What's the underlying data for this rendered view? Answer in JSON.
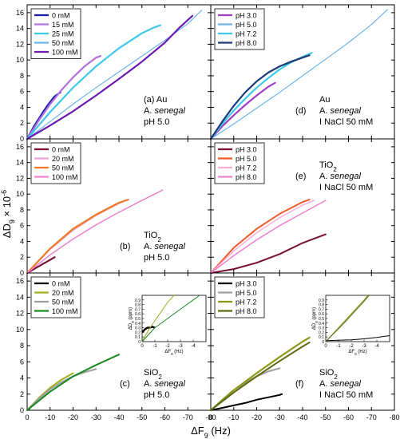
{
  "figure": {
    "xlabel_main": "ΔF",
    "xlabel_sub": "9",
    "xlabel_unit": " (Hz)",
    "ylabel_main": "ΔD",
    "ylabel_sub": "9",
    "ylabel_tail": " × 10",
    "ylabel_sup": "-6"
  },
  "chart_data": [
    {
      "id": "a",
      "type": "line",
      "xlim": [
        0,
        -80
      ],
      "ylim": [
        0,
        17
      ],
      "xticks": [
        0,
        -10,
        -20,
        -30,
        -40,
        -50,
        -60,
        -70,
        -80
      ],
      "yticks": [
        0,
        2,
        4,
        6,
        8,
        10,
        12,
        14,
        16
      ],
      "show_xticklabels": false,
      "show_yticklabels": true,
      "legend_position": "top-left",
      "annotation": [
        [
          "(a)",
          " ",
          "Au"
        ],
        [
          "A. ",
          "senegal",
          ""
        ],
        [
          "pH 5.0",
          "",
          ""
        ]
      ],
      "series": [
        {
          "name": "0 mM",
          "color": "#1a1aa8",
          "width": 2.2,
          "x": [
            0,
            -3,
            -6,
            -9,
            -12,
            -14.5
          ],
          "y": [
            0,
            1.6,
            3,
            4.3,
            5.4,
            5.9
          ]
        },
        {
          "name": "15 mM",
          "color": "#b070e0",
          "width": 2.2,
          "x": [
            0,
            -5,
            -10,
            -15,
            -20,
            -25,
            -30,
            -32
          ],
          "y": [
            0,
            2.3,
            4.4,
            6.2,
            7.8,
            9.2,
            10.3,
            10.5
          ]
        },
        {
          "name": "25 mM",
          "color": "#40c8e8",
          "width": 2.2,
          "x": [
            0,
            -10,
            -20,
            -30,
            -40,
            -50,
            -55,
            -58
          ],
          "y": [
            0,
            3.4,
            6.5,
            9.2,
            11.5,
            13.4,
            14.1,
            14.4
          ]
        },
        {
          "name": "50 mM",
          "color": "#6cb4ec",
          "width": 1.2,
          "x": [
            0,
            -10,
            -20,
            -30,
            -40,
            -50,
            -60,
            -70,
            -76
          ],
          "y": [
            0,
            2.2,
            4.4,
            6.5,
            8.5,
            10.5,
            12.5,
            14.6,
            16.3
          ]
        },
        {
          "name": "100 mM",
          "color": "#6a1ab0",
          "width": 2.2,
          "x": [
            0,
            -10,
            -20,
            -30,
            -40,
            -50,
            -60,
            -66,
            -72
          ],
          "y": [
            0,
            1.7,
            3.5,
            5.5,
            7.6,
            9.8,
            12.2,
            14.0,
            15.6
          ]
        }
      ]
    },
    {
      "id": "d",
      "type": "line",
      "xlim": [
        0,
        -80
      ],
      "ylim": [
        0,
        17
      ],
      "xticks": [
        0,
        -10,
        -20,
        -30,
        -40,
        -50,
        -60,
        -70,
        -80
      ],
      "yticks": [
        0,
        2,
        4,
        6,
        8,
        10,
        12,
        14,
        16
      ],
      "show_xticklabels": false,
      "show_yticklabels": false,
      "legend_position": "top-left",
      "annotation": [
        [
          "Au",
          "",
          ""
        ],
        [
          "A. ",
          "senegal",
          ""
        ],
        [
          "I NaCl 50 mM",
          "",
          ""
        ]
      ],
      "annotation_prefix": "(d)",
      "series": [
        {
          "name": "pH 3.0",
          "color": "#a040c0",
          "width": 2.2,
          "x": [
            0,
            -5,
            -10,
            -15,
            -20,
            -25,
            -28
          ],
          "y": [
            0,
            1.6,
            3.0,
            4.3,
            5.5,
            6.6,
            7.1
          ]
        },
        {
          "name": "pH 5.0",
          "color": "#6cb4ec",
          "width": 1.2,
          "x": [
            0,
            -10,
            -20,
            -30,
            -40,
            -50,
            -60,
            -70,
            -77
          ],
          "y": [
            0,
            1.9,
            3.9,
            5.9,
            8.0,
            10.1,
            12.2,
            14.5,
            16.4
          ]
        },
        {
          "name": "pH 7.2",
          "color": "#40c8e8",
          "width": 2.2,
          "x": [
            0,
            -5,
            -10,
            -15,
            -20,
            -25,
            -30,
            -35,
            -40,
            -44
          ],
          "y": [
            0,
            1.9,
            3.6,
            5.1,
            6.5,
            7.7,
            8.8,
            9.7,
            10.4,
            10.9
          ]
        },
        {
          "name": "pH 8.0",
          "color": "#1c3c78",
          "width": 2.2,
          "x": [
            0,
            -5,
            -10,
            -15,
            -20,
            -25,
            -30,
            -35,
            -40,
            -43
          ],
          "y": [
            0,
            2.2,
            4.2,
            5.9,
            7.3,
            8.4,
            9.2,
            9.8,
            10.3,
            10.6
          ]
        }
      ]
    },
    {
      "id": "b",
      "type": "line",
      "xlim": [
        0,
        -80
      ],
      "ylim": [
        0,
        17
      ],
      "xticks": [
        0,
        -10,
        -20,
        -30,
        -40,
        -50,
        -60,
        -70,
        -80
      ],
      "yticks": [
        0,
        2,
        4,
        6,
        8,
        10,
        12,
        14,
        16
      ],
      "show_xticklabels": false,
      "show_yticklabels": true,
      "legend_position": "top-left",
      "annotation": [
        [
          "TiO",
          "",
          "2"
        ],
        [
          "A. ",
          "senegal",
          ""
        ],
        [
          "pH 5.0",
          "",
          ""
        ]
      ],
      "annotation_prefix": "(b)",
      "series": [
        {
          "name": "0 mM",
          "color": "#7a1030",
          "width": 2.2,
          "x": [
            0,
            -3,
            -6,
            -9,
            -12
          ],
          "y": [
            0,
            0.5,
            1.0,
            1.5,
            2.0
          ]
        },
        {
          "name": "20 mM",
          "color": "#f0a0d0",
          "width": 1.5,
          "x": [
            0,
            -10,
            -20,
            -30,
            -40,
            -44
          ],
          "y": [
            0,
            3.0,
            5.4,
            7.3,
            8.8,
            9.3
          ]
        },
        {
          "name": "50 mM",
          "color": "#ee7a28",
          "width": 2.2,
          "x": [
            0,
            -10,
            -20,
            -30,
            -40,
            -44
          ],
          "y": [
            0,
            3.1,
            5.6,
            7.4,
            8.9,
            9.3
          ]
        },
        {
          "name": "100 mM",
          "color": "#ee80d0",
          "width": 1.5,
          "x": [
            0,
            -10,
            -20,
            -30,
            -40,
            -50,
            -59
          ],
          "y": [
            0,
            2.3,
            4.3,
            6.1,
            7.7,
            9.2,
            10.5
          ]
        }
      ]
    },
    {
      "id": "e",
      "type": "line",
      "xlim": [
        0,
        -80
      ],
      "ylim": [
        0,
        17
      ],
      "xticks": [
        0,
        -10,
        -20,
        -30,
        -40,
        -50,
        -60,
        -70,
        -80
      ],
      "yticks": [
        0,
        2,
        4,
        6,
        8,
        10,
        12,
        14,
        16
      ],
      "show_xticklabels": false,
      "show_yticklabels": false,
      "legend_position": "top-left",
      "annotation": [
        [
          "TiO",
          "",
          "2"
        ],
        [
          "A. ",
          "senegal",
          ""
        ],
        [
          "I NaCl 50 mM",
          "",
          ""
        ]
      ],
      "annotation_prefix": "(e)",
      "series": [
        {
          "name": "pH 3.0",
          "color": "#7a1030",
          "width": 2.0,
          "x": [
            0,
            -10,
            -20,
            -30,
            -40,
            -50
          ],
          "y": [
            0,
            0.5,
            1.3,
            2.4,
            3.8,
            4.9
          ]
        },
        {
          "name": "pH 5.0",
          "color": "#ee5a28",
          "width": 2.0,
          "x": [
            0,
            -10,
            -20,
            -30,
            -40,
            -43
          ],
          "y": [
            0,
            3.2,
            5.6,
            7.5,
            9.0,
            9.3
          ]
        },
        {
          "name": "pH 7.2",
          "color": "#f8b0d8",
          "width": 1.5,
          "x": [
            0,
            -10,
            -20,
            -30,
            -40,
            -45
          ],
          "y": [
            0,
            2.8,
            5.1,
            7.0,
            8.6,
            9.2
          ]
        },
        {
          "name": "pH 8.0",
          "color": "#ee80d0",
          "width": 1.5,
          "x": [
            0,
            -10,
            -20,
            -30,
            -40,
            -50
          ],
          "y": [
            0,
            2.2,
            4.2,
            6.0,
            7.6,
            9.2
          ]
        }
      ]
    },
    {
      "id": "c",
      "type": "line",
      "xlim": [
        0,
        -80
      ],
      "ylim": [
        0,
        17
      ],
      "xticks": [
        0,
        -10,
        -20,
        -30,
        -40,
        -50,
        -60,
        -70,
        -80
      ],
      "yticks": [
        0,
        2,
        4,
        6,
        8,
        10,
        12,
        14,
        16
      ],
      "show_xticklabels": true,
      "show_yticklabels": true,
      "legend_position": "top-left",
      "annotation": [
        [
          "SiO",
          "",
          "2"
        ],
        [
          "A. ",
          "senegal",
          ""
        ],
        [
          "pH 5.0",
          "",
          ""
        ]
      ],
      "annotation_prefix": "(c)",
      "series": [
        {
          "name": "0 mM",
          "color": "#000000",
          "width": 2.2,
          "x": [
            0,
            -0.5,
            -1
          ],
          "y": [
            0,
            0.1,
            0.2
          ]
        },
        {
          "name": "20 mM",
          "color": "#a0ae20",
          "width": 2.0,
          "x": [
            0,
            -5,
            -10,
            -15,
            -20
          ],
          "y": [
            0,
            1.5,
            2.8,
            3.8,
            4.6
          ]
        },
        {
          "name": "50 mM",
          "color": "#a0a0a0",
          "width": 2.0,
          "x": [
            0,
            -5,
            -10,
            -15,
            -20,
            -25,
            -30
          ],
          "y": [
            0,
            1.4,
            2.6,
            3.5,
            4.2,
            4.7,
            5.1
          ]
        },
        {
          "name": "100 mM",
          "color": "#1a8a20",
          "width": 2.0,
          "x": [
            0,
            -10,
            -20,
            -30,
            -40
          ],
          "y": [
            0,
            2.3,
            4.2,
            5.6,
            6.9
          ]
        }
      ],
      "inset": {
        "xlim": [
          0,
          -5
        ],
        "ylim": [
          0,
          1
        ],
        "xticks": [
          0,
          -1,
          -2,
          -3,
          -4
        ],
        "yticks": [
          0,
          0.1,
          0.2,
          0.3,
          0.4,
          0.5,
          0.6,
          0.7,
          0.8,
          0.9
        ],
        "xlabel_main": "ΔF",
        "xlabel_sub": "9",
        "xlabel_unit": " (Hz)",
        "ylabel_main": "ΔD",
        "ylabel_sub": "9",
        "ylabel_unit": " (ppm)",
        "series": [
          {
            "color": "#000000",
            "width": 2.4,
            "x": [
              0,
              -0.2,
              -0.4,
              -0.6,
              -0.8,
              -1.0
            ],
            "y": [
              0.2,
              0.26,
              0.3,
              0.3,
              0.32,
              0.3
            ]
          },
          {
            "color": "#a0ae20",
            "width": 1.0,
            "x": [
              0,
              -0.5,
              -1,
              -1.5,
              -2,
              -2.5
            ],
            "y": [
              0,
              0.25,
              0.45,
              0.65,
              0.85,
              1.0
            ]
          },
          {
            "color": "#1a8a20",
            "width": 1.0,
            "x": [
              0,
              -1,
              -2,
              -3,
              -4,
              -4.5
            ],
            "y": [
              0,
              0.3,
              0.5,
              0.7,
              0.9,
              1.0
            ]
          }
        ]
      }
    },
    {
      "id": "f",
      "type": "line",
      "xlim": [
        0,
        -80
      ],
      "ylim": [
        0,
        17
      ],
      "xticks": [
        0,
        -10,
        -20,
        -30,
        -40,
        -50,
        -60,
        -70,
        -80
      ],
      "yticks": [
        0,
        2,
        4,
        6,
        8,
        10,
        12,
        14,
        16
      ],
      "show_xticklabels": true,
      "show_yticklabels": false,
      "legend_position": "top-left",
      "annotation": [
        [
          "SiO",
          "",
          "2"
        ],
        [
          "A. ",
          "senegal",
          ""
        ],
        [
          "I NaCl 50 mM",
          "",
          ""
        ]
      ],
      "annotation_prefix": "(f)",
      "series": [
        {
          "name": "pH 3.0",
          "color": "#000000",
          "width": 2.0,
          "x": [
            0,
            -5,
            -10,
            -15,
            -20,
            -25,
            -30,
            -31
          ],
          "y": [
            0,
            0.3,
            0.6,
            0.9,
            1.3,
            1.6,
            1.9,
            2.0
          ]
        },
        {
          "name": "pH 5.0",
          "color": "#a0a0a0",
          "width": 2.0,
          "x": [
            0,
            -5,
            -10,
            -15,
            -20,
            -25,
            -30
          ],
          "y": [
            0,
            1.3,
            2.5,
            3.4,
            4.2,
            4.8,
            5.2
          ]
        },
        {
          "name": "pH 7.2",
          "color": "#8c9a18",
          "width": 2.2,
          "x": [
            0,
            -10,
            -20,
            -30,
            -40,
            -43
          ],
          "y": [
            0,
            2.5,
            4.6,
            6.6,
            8.5,
            9.0
          ]
        },
        {
          "name": "pH 8.0",
          "color": "#5e6a12",
          "width": 2.0,
          "x": [
            0,
            -10,
            -20,
            -30,
            -40,
            -43
          ],
          "y": [
            0,
            2.2,
            4.2,
            6.1,
            7.9,
            8.4
          ]
        }
      ],
      "inset": {
        "xlim": [
          0,
          -5
        ],
        "ylim": [
          0,
          1
        ],
        "xticks": [
          0,
          -1,
          -2,
          -3,
          -4
        ],
        "yticks": [
          0,
          0.1,
          0.2,
          0.3,
          0.4,
          0.5,
          0.6,
          0.7,
          0.8,
          0.9
        ],
        "xlabel_main": "ΔF",
        "xlabel_sub": "9",
        "xlabel_unit": " (Hz)",
        "ylabel_main": "ΔD",
        "ylabel_sub": "9",
        "ylabel_unit": " (ppm)",
        "series": [
          {
            "color": "#000000",
            "width": 1.0,
            "x": [
              0,
              -1,
              -2,
              -3,
              -4,
              -5
            ],
            "y": [
              0.02,
              0.03,
              0.04,
              0.06,
              0.09,
              0.13
            ]
          },
          {
            "color": "#8c9a18",
            "width": 1.0,
            "x": [
              0,
              -0.5,
              -1,
              -1.5,
              -2,
              -2.5,
              -3,
              -3.3
            ],
            "y": [
              0,
              0.15,
              0.3,
              0.45,
              0.6,
              0.75,
              0.9,
              1.0
            ]
          },
          {
            "color": "#5e6a12",
            "width": 1.0,
            "x": [
              0,
              -0.5,
              -1,
              -1.5,
              -2,
              -2.5,
              -3,
              -3.4
            ],
            "y": [
              0,
              0.14,
              0.28,
              0.42,
              0.57,
              0.72,
              0.87,
              1.0
            ]
          }
        ]
      }
    }
  ]
}
